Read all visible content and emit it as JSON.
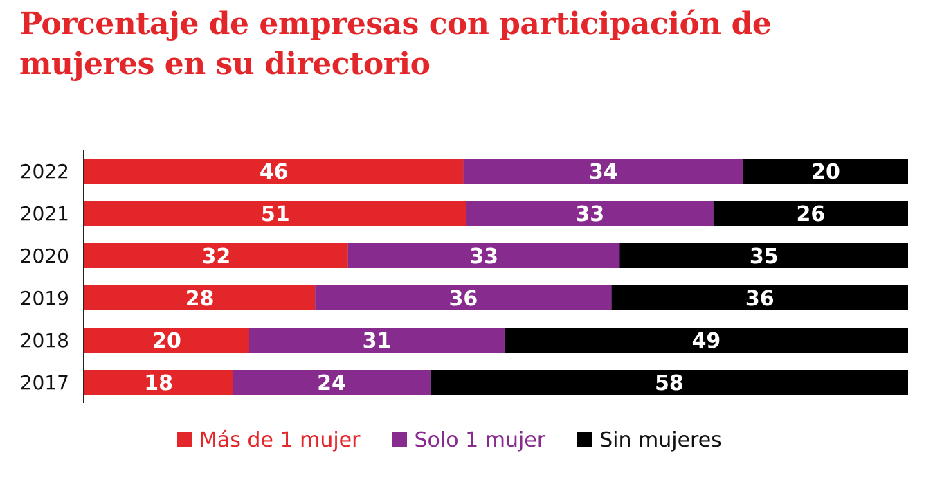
{
  "title": "Porcentaje de empresas con participación de mujeres en su directorio",
  "colors": {
    "title": "#e3262a",
    "series": [
      "#e3262a",
      "#882b8f",
      "#000000"
    ],
    "bar_label": "#ffffff"
  },
  "chart_data": {
    "type": "bar",
    "orientation": "horizontal",
    "stacked": true,
    "categories": [
      "2022",
      "2021",
      "2020",
      "2019",
      "2018",
      "2017"
    ],
    "series": [
      {
        "name": "Más de 1 mujer",
        "values": [
          46,
          51,
          32,
          28,
          20,
          18
        ]
      },
      {
        "name": "Solo 1 mujer",
        "values": [
          34,
          33,
          33,
          36,
          31,
          24
        ]
      },
      {
        "name": "Sin mujeres",
        "values": [
          20,
          26,
          35,
          36,
          49,
          58
        ]
      }
    ],
    "data_labels": true,
    "legend_position": "bottom",
    "grid": false
  },
  "legend": [
    {
      "label": "Más de 1 mujer",
      "color": "#e3262a"
    },
    {
      "label": "Solo 1 mujer",
      "color": "#882b8f"
    },
    {
      "label": "Sin mujeres",
      "color": "#000000"
    }
  ]
}
